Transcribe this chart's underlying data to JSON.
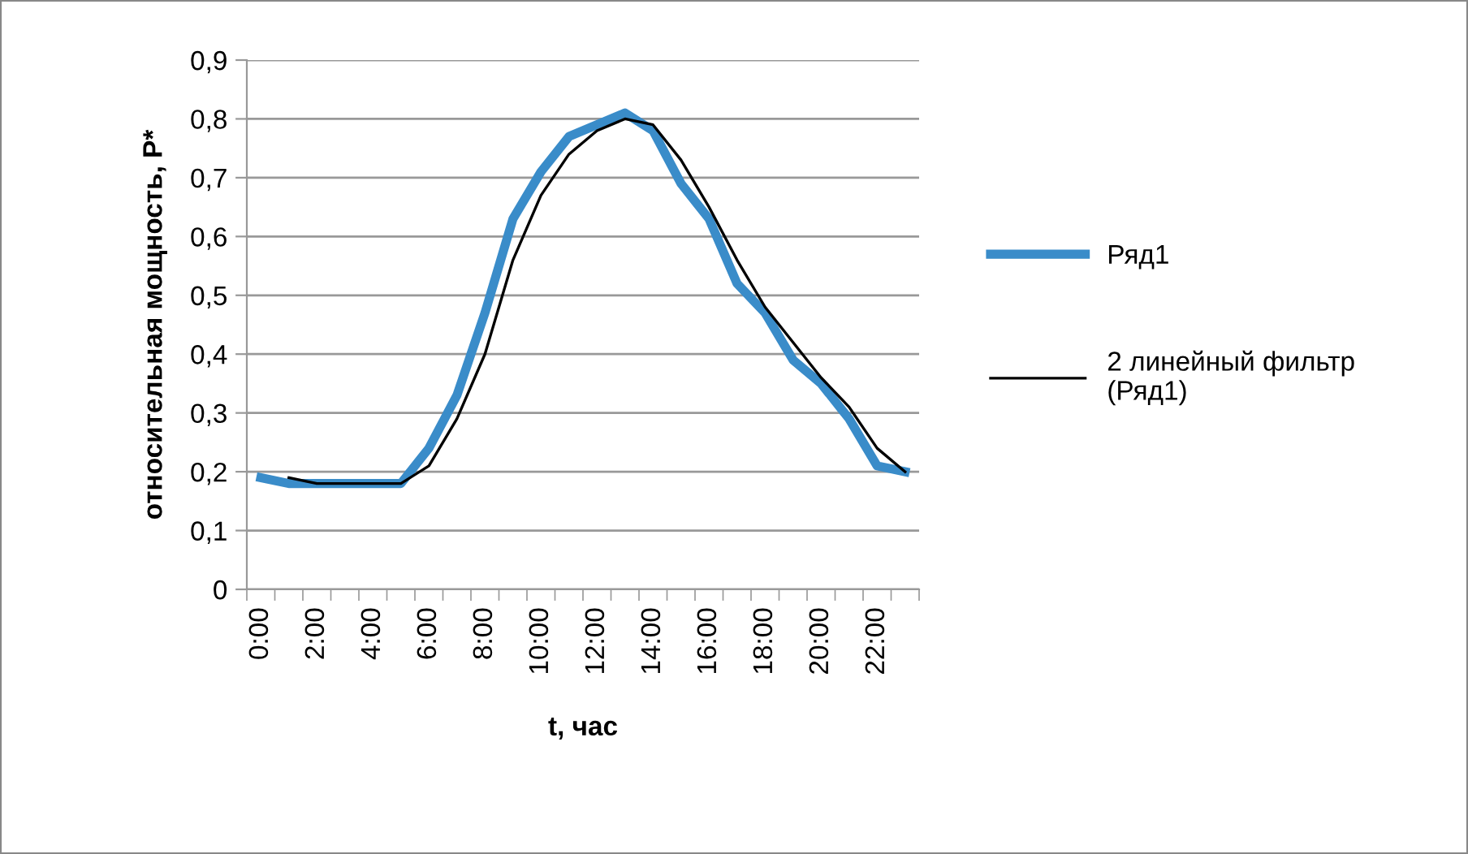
{
  "chart_data": {
    "type": "line",
    "xlabel": "t, час",
    "ylabel": "относительная мощность, Р*",
    "categories": [
      "0:00",
      null,
      "2:00",
      null,
      "4:00",
      null,
      "6:00",
      null,
      "8:00",
      null,
      "10:00",
      null,
      "12:00",
      null,
      "14:00",
      null,
      "16:00",
      null,
      "18:00",
      null,
      "20:00",
      null,
      "22:00",
      null
    ],
    "series": [
      {
        "name": "Ряд1",
        "color": "#3a8cc9",
        "values": [
          0.19,
          0.18,
          0.18,
          0.18,
          0.18,
          0.18,
          0.24,
          0.33,
          0.47,
          0.63,
          0.71,
          0.77,
          0.79,
          0.81,
          0.78,
          0.69,
          0.63,
          0.52,
          0.47,
          0.39,
          0.35,
          0.29,
          0.21,
          0.2
        ]
      },
      {
        "name": "2 линейный фильтр\n(Ряд1)",
        "color": "#000000",
        "values": [
          null,
          0.19,
          0.18,
          0.18,
          0.18,
          0.18,
          0.21,
          0.29,
          0.4,
          0.56,
          0.67,
          0.74,
          0.78,
          0.8,
          0.79,
          0.73,
          0.65,
          0.56,
          0.48,
          0.42,
          0.36,
          0.31,
          0.24,
          0.2
        ]
      }
    ],
    "ylim": [
      0,
      0.9
    ],
    "yticks": [
      0,
      {
        "value": 0.1,
        "label": "0,1"
      },
      {
        "value": 0.2,
        "label": "0,2"
      },
      {
        "value": 0.3,
        "label": "0,3"
      },
      {
        "value": 0.4,
        "label": "0,4"
      },
      {
        "value": 0.5,
        "label": "0,5"
      },
      {
        "value": 0.6,
        "label": "0,6"
      },
      {
        "value": 0.7,
        "label": "0,7"
      },
      {
        "value": 0.8,
        "label": "0,8"
      },
      {
        "value": 0.9,
        "label": "0,9"
      }
    ],
    "grid": "y",
    "legend": "right",
    "marker": "none",
    "line_style": "solid"
  }
}
